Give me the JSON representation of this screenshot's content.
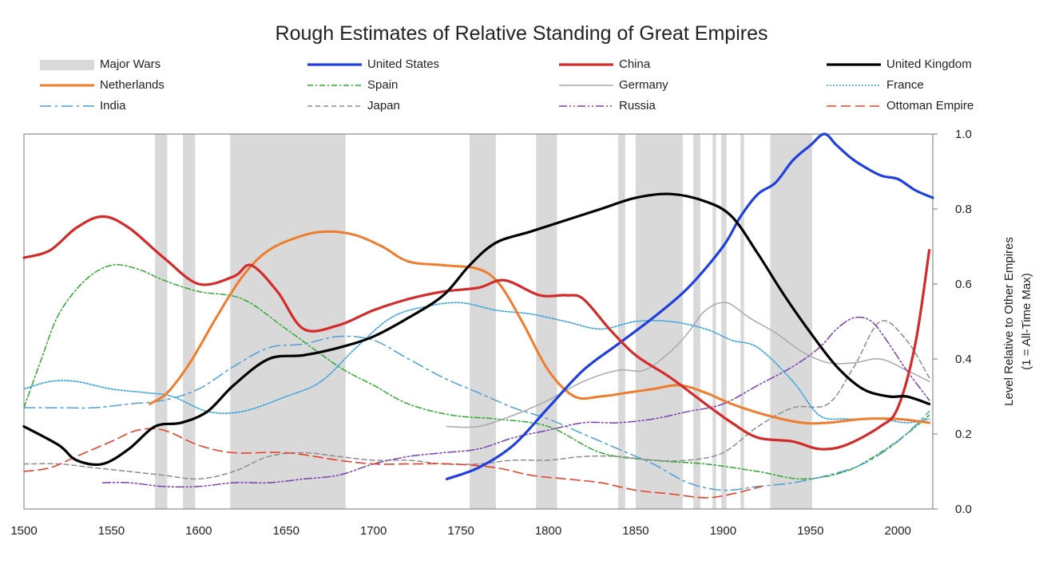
{
  "chart_data": {
    "type": "line",
    "title": "Rough Estimates of Relative Standing of Great Empires",
    "xlabel": "",
    "ylabel": "Level Relative to Other Empires",
    "ylabel2": "(1 = All-Time Max)",
    "xlim": [
      1500,
      2020
    ],
    "ylim": [
      0,
      1
    ],
    "x_ticks": [
      1500,
      1550,
      1600,
      1650,
      1700,
      1750,
      1800,
      1850,
      1900,
      1950,
      2000
    ],
    "y_ticks": [
      0.0,
      0.2,
      0.4,
      0.6,
      0.8,
      1.0
    ],
    "y_tick_labels": [
      "0.0",
      "0.2",
      "0.4",
      "0.6",
      "0.8",
      "1.0"
    ],
    "y_axis_side": "right",
    "legend_position": "top",
    "major_wars_label": "Major Wars",
    "wars": [
      [
        1575,
        1582
      ],
      [
        1591,
        1598
      ],
      [
        1618,
        1684
      ],
      [
        1755,
        1770
      ],
      [
        1793,
        1805
      ],
      [
        1840,
        1844
      ],
      [
        1850,
        1877
      ],
      [
        1883,
        1887
      ],
      [
        1894,
        1896
      ],
      [
        1899,
        1902
      ],
      [
        1910,
        1912
      ],
      [
        1927,
        1951
      ]
    ],
    "series": [
      {
        "name": "United States",
        "color": "#1f3fe0",
        "style": "solid",
        "width": 3.2,
        "x": [
          1742,
          1760,
          1780,
          1800,
          1820,
          1840,
          1860,
          1880,
          1900,
          1910,
          1920,
          1930,
          1940,
          1950,
          1958,
          1965,
          1975,
          1990,
          2000,
          2010,
          2020
        ],
        "y": [
          0.08,
          0.11,
          0.17,
          0.27,
          0.37,
          0.44,
          0.51,
          0.59,
          0.7,
          0.78,
          0.84,
          0.87,
          0.93,
          0.97,
          1.0,
          0.97,
          0.93,
          0.89,
          0.88,
          0.85,
          0.83
        ]
      },
      {
        "name": "China",
        "color": "#d32a2a",
        "style": "solid",
        "width": 3.2,
        "x": [
          1500,
          1515,
          1530,
          1545,
          1560,
          1580,
          1600,
          1620,
          1630,
          1645,
          1660,
          1680,
          1700,
          1720,
          1740,
          1760,
          1775,
          1795,
          1810,
          1820,
          1835,
          1850,
          1870,
          1890,
          1905,
          1920,
          1940,
          1955,
          1970,
          1990,
          2000,
          2010,
          2018
        ],
        "y": [
          0.67,
          0.69,
          0.75,
          0.78,
          0.75,
          0.67,
          0.6,
          0.62,
          0.65,
          0.58,
          0.48,
          0.49,
          0.53,
          0.56,
          0.58,
          0.59,
          0.61,
          0.57,
          0.57,
          0.56,
          0.48,
          0.41,
          0.35,
          0.28,
          0.23,
          0.19,
          0.18,
          0.16,
          0.17,
          0.22,
          0.27,
          0.44,
          0.69
        ]
      },
      {
        "name": "United Kingdom",
        "color": "#000000",
        "style": "solid",
        "width": 3.2,
        "x": [
          1500,
          1520,
          1530,
          1545,
          1560,
          1575,
          1590,
          1605,
          1620,
          1640,
          1660,
          1680,
          1700,
          1720,
          1740,
          1755,
          1770,
          1790,
          1810,
          1830,
          1850,
          1870,
          1890,
          1905,
          1920,
          1935,
          1950,
          1965,
          1980,
          1995,
          2005,
          2018
        ],
        "y": [
          0.22,
          0.17,
          0.13,
          0.12,
          0.16,
          0.22,
          0.23,
          0.26,
          0.33,
          0.4,
          0.41,
          0.43,
          0.46,
          0.51,
          0.57,
          0.65,
          0.71,
          0.74,
          0.77,
          0.8,
          0.83,
          0.84,
          0.82,
          0.78,
          0.68,
          0.57,
          0.47,
          0.38,
          0.32,
          0.3,
          0.3,
          0.28
        ]
      },
      {
        "name": "Netherlands",
        "color": "#ef7d2d",
        "style": "solid",
        "width": 3.0,
        "x": [
          1572,
          1582,
          1595,
          1610,
          1625,
          1640,
          1660,
          1675,
          1690,
          1705,
          1720,
          1740,
          1760,
          1772,
          1785,
          1800,
          1815,
          1830,
          1845,
          1860,
          1875,
          1890,
          1905,
          1925,
          1945,
          1960,
          1980,
          2000,
          2018
        ],
        "y": [
          0.28,
          0.31,
          0.39,
          0.51,
          0.62,
          0.69,
          0.73,
          0.74,
          0.73,
          0.7,
          0.66,
          0.65,
          0.64,
          0.6,
          0.5,
          0.37,
          0.3,
          0.3,
          0.31,
          0.32,
          0.33,
          0.31,
          0.28,
          0.25,
          0.23,
          0.23,
          0.24,
          0.24,
          0.23
        ]
      },
      {
        "name": "Spain",
        "color": "#2eaa2e",
        "style": "dashdot",
        "width": 1.5,
        "x": [
          1500,
          1510,
          1520,
          1535,
          1550,
          1565,
          1580,
          1600,
          1625,
          1650,
          1680,
          1700,
          1720,
          1745,
          1770,
          1800,
          1830,
          1860,
          1890,
          1920,
          1945,
          1970,
          1990,
          2005,
          2018
        ],
        "y": [
          0.27,
          0.4,
          0.52,
          0.61,
          0.65,
          0.64,
          0.61,
          0.58,
          0.56,
          0.48,
          0.38,
          0.33,
          0.28,
          0.25,
          0.24,
          0.22,
          0.15,
          0.13,
          0.12,
          0.1,
          0.08,
          0.1,
          0.15,
          0.2,
          0.25
        ]
      },
      {
        "name": "Germany",
        "color": "#a9a9a9",
        "style": "solid",
        "width": 1.5,
        "x": [
          1742,
          1760,
          1780,
          1800,
          1820,
          1840,
          1855,
          1870,
          1880,
          1890,
          1902,
          1915,
          1930,
          1945,
          1960,
          1975,
          1990,
          2005,
          2018
        ],
        "y": [
          0.22,
          0.22,
          0.25,
          0.29,
          0.34,
          0.37,
          0.37,
          0.42,
          0.47,
          0.53,
          0.55,
          0.51,
          0.47,
          0.42,
          0.39,
          0.39,
          0.4,
          0.37,
          0.34
        ]
      },
      {
        "name": "France",
        "color": "#33a3e0",
        "style": "dotted",
        "width": 1.6,
        "x": [
          1500,
          1515,
          1530,
          1550,
          1570,
          1585,
          1605,
          1625,
          1650,
          1670,
          1690,
          1710,
          1730,
          1750,
          1770,
          1790,
          1810,
          1830,
          1850,
          1870,
          1890,
          1905,
          1920,
          1940,
          1955,
          1970,
          1990,
          2005,
          2018
        ],
        "y": [
          0.32,
          0.34,
          0.34,
          0.32,
          0.31,
          0.3,
          0.26,
          0.26,
          0.3,
          0.34,
          0.43,
          0.51,
          0.54,
          0.55,
          0.53,
          0.52,
          0.5,
          0.48,
          0.5,
          0.5,
          0.48,
          0.45,
          0.43,
          0.34,
          0.25,
          0.24,
          0.24,
          0.23,
          0.24
        ]
      },
      {
        "name": "India",
        "color": "#4d9fd6",
        "style": "longdashdot",
        "width": 1.5,
        "x": [
          1500,
          1520,
          1540,
          1560,
          1580,
          1600,
          1620,
          1640,
          1660,
          1680,
          1700,
          1720,
          1740,
          1760,
          1780,
          1800,
          1820,
          1840,
          1860,
          1880,
          1900,
          1920,
          1940,
          1960,
          1980,
          2000,
          2018
        ],
        "y": [
          0.27,
          0.27,
          0.27,
          0.28,
          0.29,
          0.32,
          0.38,
          0.43,
          0.44,
          0.46,
          0.45,
          0.4,
          0.35,
          0.31,
          0.27,
          0.24,
          0.2,
          0.16,
          0.12,
          0.07,
          0.05,
          0.06,
          0.07,
          0.09,
          0.12,
          0.18,
          0.26
        ]
      },
      {
        "name": "Japan",
        "color": "#8c8c8c",
        "style": "dashed",
        "width": 1.5,
        "x": [
          1500,
          1520,
          1540,
          1560,
          1580,
          1600,
          1620,
          1640,
          1660,
          1680,
          1700,
          1720,
          1740,
          1760,
          1780,
          1800,
          1820,
          1840,
          1860,
          1880,
          1900,
          1920,
          1940,
          1960,
          1975,
          1990,
          2005,
          2018
        ],
        "y": [
          0.12,
          0.12,
          0.11,
          0.1,
          0.09,
          0.08,
          0.1,
          0.14,
          0.15,
          0.14,
          0.13,
          0.13,
          0.12,
          0.12,
          0.13,
          0.13,
          0.14,
          0.14,
          0.13,
          0.13,
          0.15,
          0.22,
          0.27,
          0.28,
          0.38,
          0.5,
          0.45,
          0.35
        ]
      },
      {
        "name": "Russia",
        "color": "#7a3fb0",
        "style": "dashdotdot",
        "width": 1.5,
        "x": [
          1545,
          1560,
          1580,
          1600,
          1620,
          1640,
          1660,
          1680,
          1700,
          1720,
          1740,
          1760,
          1780,
          1800,
          1820,
          1840,
          1860,
          1880,
          1900,
          1920,
          1940,
          1955,
          1965,
          1975,
          1985,
          1995,
          2005,
          2018
        ],
        "y": [
          0.07,
          0.07,
          0.06,
          0.06,
          0.07,
          0.07,
          0.08,
          0.09,
          0.12,
          0.14,
          0.15,
          0.16,
          0.19,
          0.21,
          0.23,
          0.23,
          0.24,
          0.26,
          0.28,
          0.33,
          0.38,
          0.43,
          0.48,
          0.51,
          0.5,
          0.44,
          0.37,
          0.29
        ]
      },
      {
        "name": "Ottoman Empire",
        "color": "#e8412a",
        "style": "longdash",
        "width": 1.6,
        "x": [
          1500,
          1515,
          1530,
          1550,
          1565,
          1580,
          1600,
          1620,
          1650,
          1680,
          1700,
          1720,
          1745,
          1770,
          1790,
          1810,
          1830,
          1850,
          1870,
          1890,
          1905,
          1922
        ],
        "y": [
          0.1,
          0.11,
          0.14,
          0.18,
          0.21,
          0.21,
          0.17,
          0.15,
          0.15,
          0.13,
          0.12,
          0.12,
          0.12,
          0.11,
          0.09,
          0.08,
          0.07,
          0.05,
          0.04,
          0.03,
          0.04,
          0.06
        ]
      }
    ]
  }
}
